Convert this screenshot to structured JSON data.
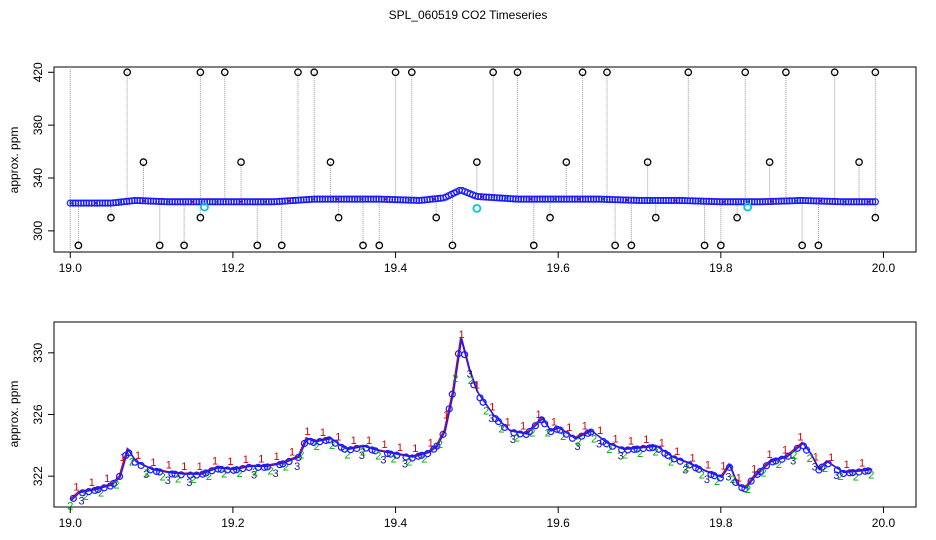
{
  "title": "SPL_060519  CO2 Timeseries",
  "chart_data": [
    {
      "type": "scatter",
      "ylabel": "approx. ppm",
      "xlabel": "",
      "xlim": [
        18.98,
        20.04
      ],
      "ylim": [
        284,
        424
      ],
      "x_ticks": [
        19.0,
        19.2,
        19.4,
        19.6,
        19.8,
        20.0
      ],
      "x_tick_labels": [
        "19.0",
        "19.2",
        "19.4",
        "19.6",
        "19.8",
        "20.0"
      ],
      "y_ticks": [
        300,
        340,
        380,
        420
      ],
      "y_tick_labels": [
        "300",
        "340",
        "380",
        "420"
      ],
      "base_series": {
        "x": [
          19.0,
          19.05,
          19.08,
          19.12,
          19.16,
          19.2,
          19.25,
          19.3,
          19.33,
          19.38,
          19.43,
          19.46,
          19.48,
          19.5,
          19.55,
          19.6,
          19.65,
          19.7,
          19.75,
          19.8,
          19.85,
          19.9,
          19.95,
          19.99
        ],
        "y": [
          321,
          321,
          323,
          322,
          322,
          322,
          322,
          324,
          324,
          324,
          323,
          325,
          331,
          326,
          324,
          324,
          324,
          323,
          323,
          322,
          322,
          323,
          322,
          322
        ]
      },
      "outliers_high": [
        19.07,
        19.09,
        19.16,
        19.19,
        19.21,
        19.28,
        19.3,
        19.32,
        19.4,
        19.42,
        19.5,
        19.52,
        19.55,
        19.61,
        19.63,
        19.66,
        19.71,
        19.76,
        19.83,
        19.86,
        19.88,
        19.94,
        19.97,
        19.99
      ],
      "outliers_low": [
        19.01,
        19.05,
        19.11,
        19.14,
        19.16,
        19.23,
        19.26,
        19.33,
        19.36,
        19.38,
        19.45,
        19.47,
        19.57,
        19.59,
        19.67,
        19.69,
        19.72,
        19.78,
        19.8,
        19.82,
        19.9,
        19.92,
        19.99
      ],
      "cyan_points": [
        {
          "x": 19.165,
          "y": 318
        },
        {
          "x": 19.5,
          "y": 317
        },
        {
          "x": 19.833,
          "y": 318
        }
      ]
    },
    {
      "type": "line",
      "ylabel": "approx. ppm",
      "xlabel": "",
      "xlim": [
        18.98,
        20.04
      ],
      "ylim": [
        320,
        332
      ],
      "x_ticks": [
        19.0,
        19.2,
        19.4,
        19.6,
        19.8,
        20.0
      ],
      "x_tick_labels": [
        "19.0",
        "19.2",
        "19.4",
        "19.6",
        "19.8",
        "20.0"
      ],
      "y_ticks": [
        322,
        326,
        330
      ],
      "y_tick_labels": [
        "322",
        "326",
        "330"
      ],
      "series": {
        "x": [
          19.0,
          19.01,
          19.03,
          19.05,
          19.06,
          19.07,
          19.08,
          19.1,
          19.12,
          19.14,
          19.16,
          19.18,
          19.2,
          19.22,
          19.24,
          19.26,
          19.28,
          19.29,
          19.3,
          19.32,
          19.33,
          19.34,
          19.36,
          19.38,
          19.4,
          19.42,
          19.44,
          19.45,
          19.46,
          19.47,
          19.48,
          19.485,
          19.49,
          19.5,
          19.52,
          19.54,
          19.56,
          19.58,
          19.59,
          19.6,
          19.62,
          19.64,
          19.66,
          19.68,
          19.7,
          19.72,
          19.74,
          19.76,
          19.78,
          19.8,
          19.81,
          19.82,
          19.83,
          19.84,
          19.86,
          19.88,
          19.9,
          19.91,
          19.92,
          19.93,
          19.95,
          19.97,
          19.985
        ],
        "y": [
          320.5,
          321.0,
          321.2,
          321.5,
          322.0,
          323.8,
          323.0,
          322.5,
          322.3,
          322.2,
          322.2,
          322.6,
          322.5,
          322.7,
          322.7,
          322.9,
          323.3,
          324.5,
          324.3,
          324.5,
          324.1,
          323.8,
          324.0,
          323.7,
          323.5,
          323.3,
          323.6,
          324.0,
          325.0,
          327.5,
          331.0,
          330.0,
          329.0,
          327.5,
          326.0,
          325.0,
          324.8,
          325.8,
          325.0,
          325.2,
          324.5,
          325.0,
          324.2,
          323.8,
          323.9,
          324.0,
          323.3,
          322.9,
          322.4,
          322.0,
          322.8,
          321.5,
          321.3,
          322.0,
          323.0,
          323.3,
          324.2,
          323.5,
          322.5,
          323.0,
          322.3,
          322.4,
          322.5
        ]
      }
    }
  ]
}
